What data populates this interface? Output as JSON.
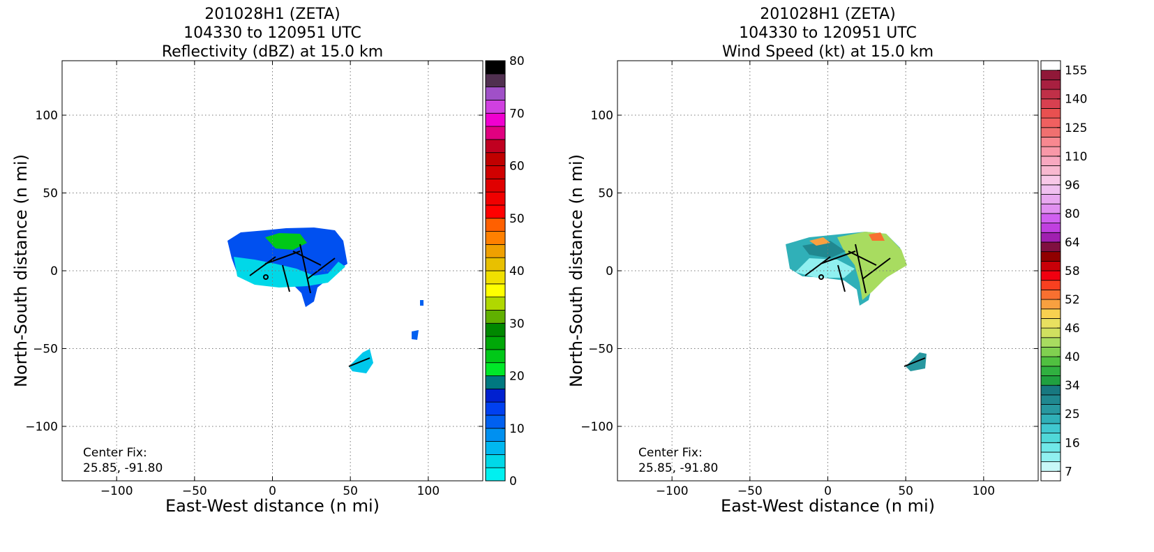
{
  "chart_data": [
    {
      "type": "contour",
      "title": [
        "201028H1 (ZETA)",
        "104330 to 120951 UTC",
        "Reflectivity (dBZ) at 15.0 km"
      ],
      "xlabel": "East-West distance (n mi)",
      "ylabel": "North-South distance (n mi)",
      "xlim": [
        -135,
        135
      ],
      "ylim": [
        -135,
        135
      ],
      "xticks": [
        {
          "value": -100,
          "label": "−100"
        },
        {
          "value": -50,
          "label": "−50"
        },
        0,
        50,
        100
      ],
      "yticks": [
        {
          "value": -100,
          "label": "−100"
        },
        {
          "value": -50,
          "label": "−50"
        },
        0,
        50,
        100
      ],
      "grid": true,
      "annotation": [
        "Center Fix:",
        "25.85, -91.80"
      ],
      "colorbar": {
        "levels": [
          0,
          2.5,
          5,
          7.5,
          10,
          12.5,
          15,
          17.5,
          20,
          22.5,
          25,
          27.5,
          30,
          32.5,
          35,
          37.5,
          40,
          42.5,
          45,
          47.5,
          50,
          52.5,
          55,
          57.5,
          60,
          62.5,
          65,
          67.5,
          70,
          72.5,
          75,
          77.5,
          80
        ],
        "colors": [
          "#00f0f0",
          "#00d8e8",
          "#00b8f0",
          "#0090f0",
          "#0060f0",
          "#0040f0",
          "#0020d0",
          "#007880",
          "#00e828",
          "#00c818",
          "#00a808",
          "#008800",
          "#60b000",
          "#b0d800",
          "#ffff00",
          "#f0e000",
          "#e8c000",
          "#f0a000",
          "#ff8000",
          "#ff6000",
          "#ff0000",
          "#f00000",
          "#e00000",
          "#d00000",
          "#c00000",
          "#c00020",
          "#e00080",
          "#f000d0",
          "#d040e0",
          "#a050c8",
          "#503050",
          "#000000"
        ],
        "ticks": [
          0,
          10,
          20,
          30,
          40,
          50,
          60,
          70,
          80
        ]
      }
    },
    {
      "type": "contour",
      "title": [
        "201028H1 (ZETA)",
        "104330 to 120951 UTC",
        "Wind Speed (kt) at 15.0 km"
      ],
      "xlabel": "East-West distance (n mi)",
      "ylabel": "North-South distance (n mi)",
      "xlim": [
        -135,
        135
      ],
      "ylim": [
        -135,
        135
      ],
      "xticks": [
        {
          "value": -100,
          "label": "−100"
        },
        {
          "value": -50,
          "label": "−50"
        },
        0,
        50,
        100
      ],
      "yticks": [
        {
          "value": -100,
          "label": "−100"
        },
        {
          "value": -50,
          "label": "−50"
        },
        0,
        50,
        100
      ],
      "grid": true,
      "annotation": [
        "Center Fix:",
        "25.85, -91.80"
      ],
      "colorbar": {
        "levels": [
          4,
          7,
          10,
          13,
          16,
          19,
          22,
          25,
          28,
          31,
          34,
          36,
          38,
          40,
          42,
          44,
          46,
          48,
          50,
          52,
          54,
          56,
          58,
          60,
          62,
          64,
          69,
          75,
          80,
          85,
          91,
          96,
          101,
          105,
          110,
          115,
          120,
          125,
          130,
          135,
          140,
          145,
          150,
          155,
          160
        ],
        "colors": [
          "#ffffff",
          "#c8f8f8",
          "#90f0f0",
          "#70e8e8",
          "#50d8d8",
          "#40c8d0",
          "#30b0b8",
          "#2898a0",
          "#208890",
          "#187880",
          "#20a040",
          "#30b040",
          "#50c040",
          "#80d050",
          "#a8dc60",
          "#d0e060",
          "#e8e060",
          "#f8d050",
          "#f8a040",
          "#f87030",
          "#f84020",
          "#f00010",
          "#c80008",
          "#900000",
          "#801040",
          "#a020b0",
          "#c040e0",
          "#d060f0",
          "#e090f0",
          "#e8a8f0",
          "#f0c0f0",
          "#f8c8e8",
          "#f8b8d0",
          "#f8a8c0",
          "#f898a8",
          "#f88890",
          "#f07070",
          "#f06060",
          "#e85050",
          "#d84050",
          "#c03048",
          "#a82040",
          "#901838"
        ],
        "ticks": [
          7,
          16,
          25,
          34,
          40,
          46,
          52,
          58,
          64,
          80,
          96,
          110,
          125,
          140,
          155
        ]
      }
    }
  ]
}
